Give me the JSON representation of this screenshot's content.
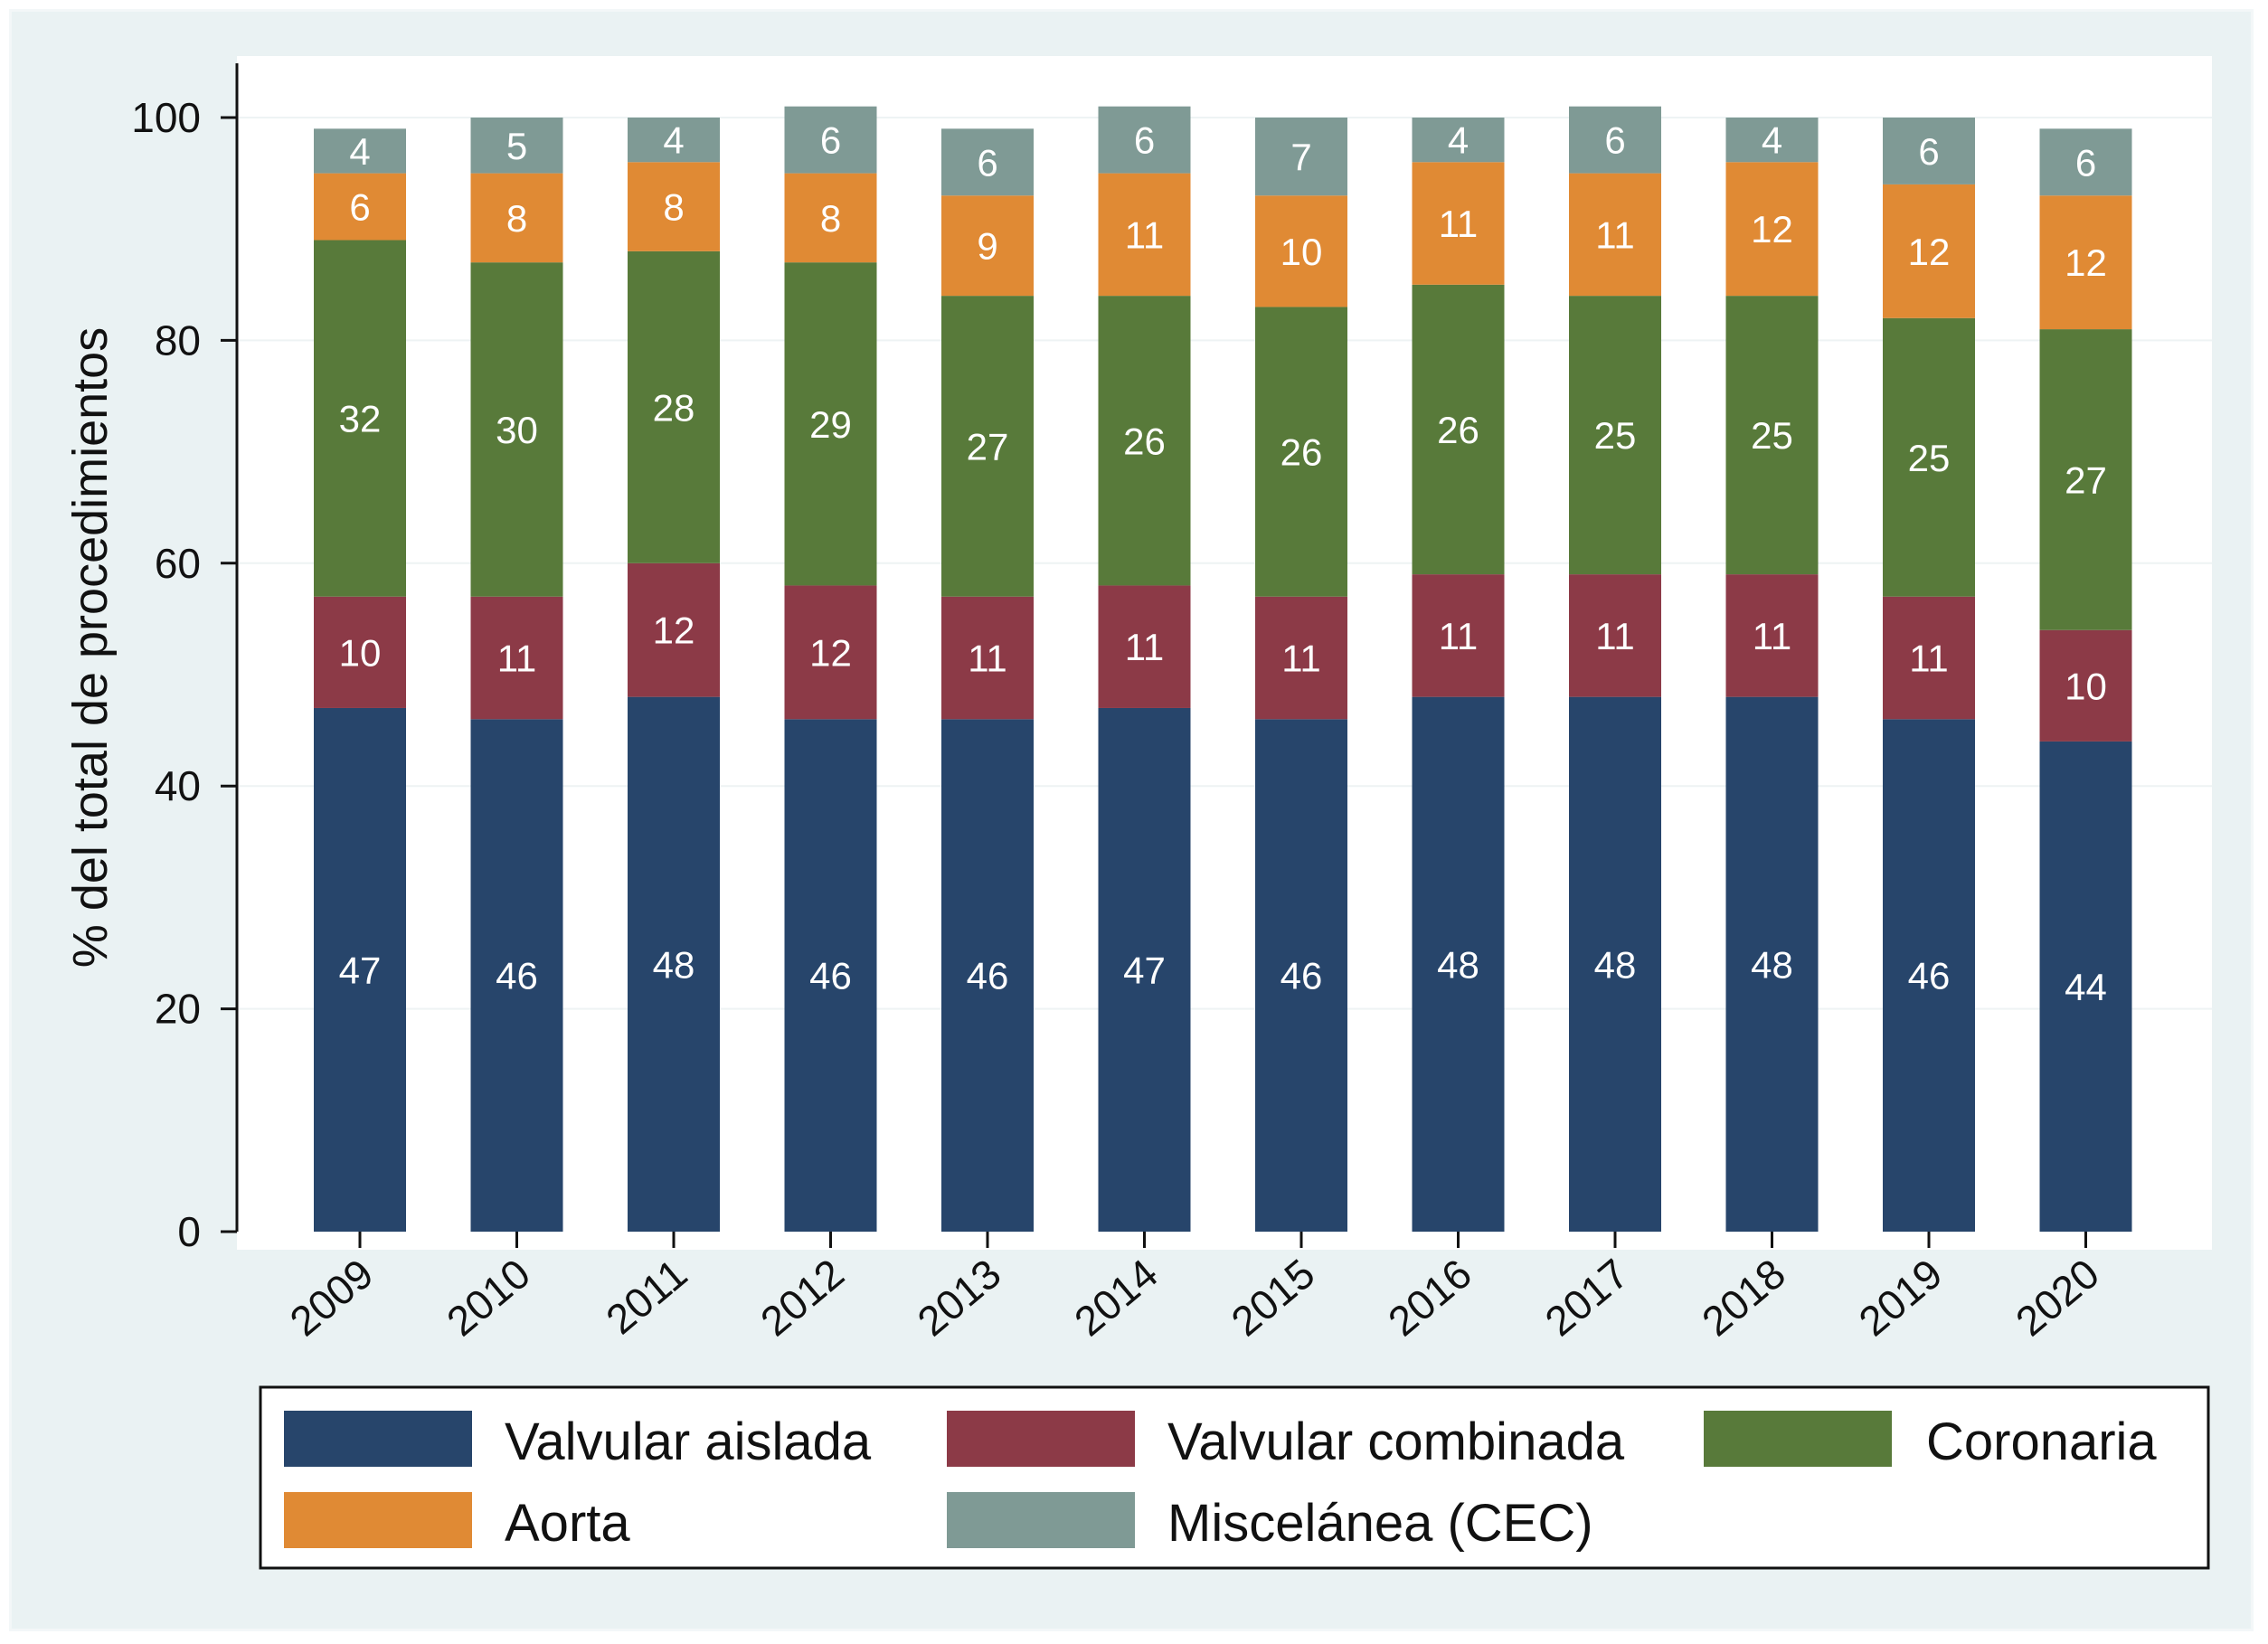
{
  "chart_data": {
    "type": "bar",
    "stacked": true,
    "categories": [
      "2009",
      "2010",
      "2011",
      "2012",
      "2013",
      "2014",
      "2015",
      "2016",
      "2017",
      "2018",
      "2019",
      "2020"
    ],
    "series": [
      {
        "name": "Valvular aislada",
        "color": "#27456b",
        "values": [
          47,
          46,
          48,
          46,
          46,
          47,
          46,
          48,
          48,
          48,
          46,
          44
        ]
      },
      {
        "name": "Valvular combinada",
        "color": "#8c3a47",
        "values": [
          10,
          11,
          12,
          12,
          11,
          11,
          11,
          11,
          11,
          11,
          11,
          10
        ]
      },
      {
        "name": "Coronaria",
        "color": "#587a3a",
        "values": [
          32,
          30,
          28,
          29,
          27,
          26,
          26,
          26,
          25,
          25,
          25,
          27
        ]
      },
      {
        "name": "Aorta",
        "color": "#e08a34",
        "values": [
          6,
          8,
          8,
          8,
          9,
          11,
          10,
          11,
          11,
          12,
          12,
          12
        ]
      },
      {
        "name": "Miscelánea (CEC)",
        "color": "#7f9a95",
        "values": [
          4,
          5,
          4,
          6,
          6,
          6,
          7,
          4,
          6,
          4,
          6,
          6
        ]
      }
    ],
    "title": "",
    "xlabel": "",
    "ylabel": "% del total de procedimientos",
    "ylim": [
      0,
      100
    ],
    "yticks": [
      "0",
      "20",
      "40",
      "60",
      "80",
      "100"
    ],
    "grid": true,
    "legend_position": "bottom"
  }
}
